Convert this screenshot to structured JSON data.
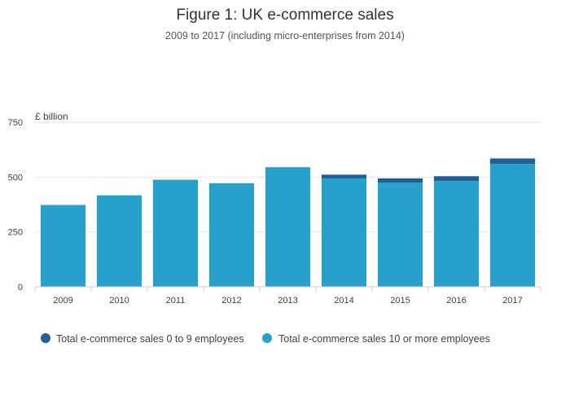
{
  "chart_data": {
    "type": "bar",
    "stacked": true,
    "title": "Figure 1: UK e-commerce sales",
    "subtitle": "2009 to 2017 (including micro-enterprises from 2014)",
    "unit_label": "£ billion",
    "categories": [
      "2009",
      "2010",
      "2011",
      "2012",
      "2013",
      "2014",
      "2015",
      "2016",
      "2017"
    ],
    "series": [
      {
        "name": "Total e-commerce sales 0 to 9 employees",
        "color": "#206095",
        "values": [
          0,
          0,
          0,
          0,
          0,
          17,
          20,
          22,
          25
        ]
      },
      {
        "name": "Total e-commerce sales 10 or more employees",
        "color": "#27a0cc",
        "values": [
          373,
          417,
          488,
          472,
          545,
          494,
          474,
          482,
          560
        ]
      }
    ],
    "ylim": [
      0,
      750
    ],
    "yticks": [
      0,
      250,
      500,
      750
    ],
    "grid": true,
    "legend_position": "bottom"
  }
}
